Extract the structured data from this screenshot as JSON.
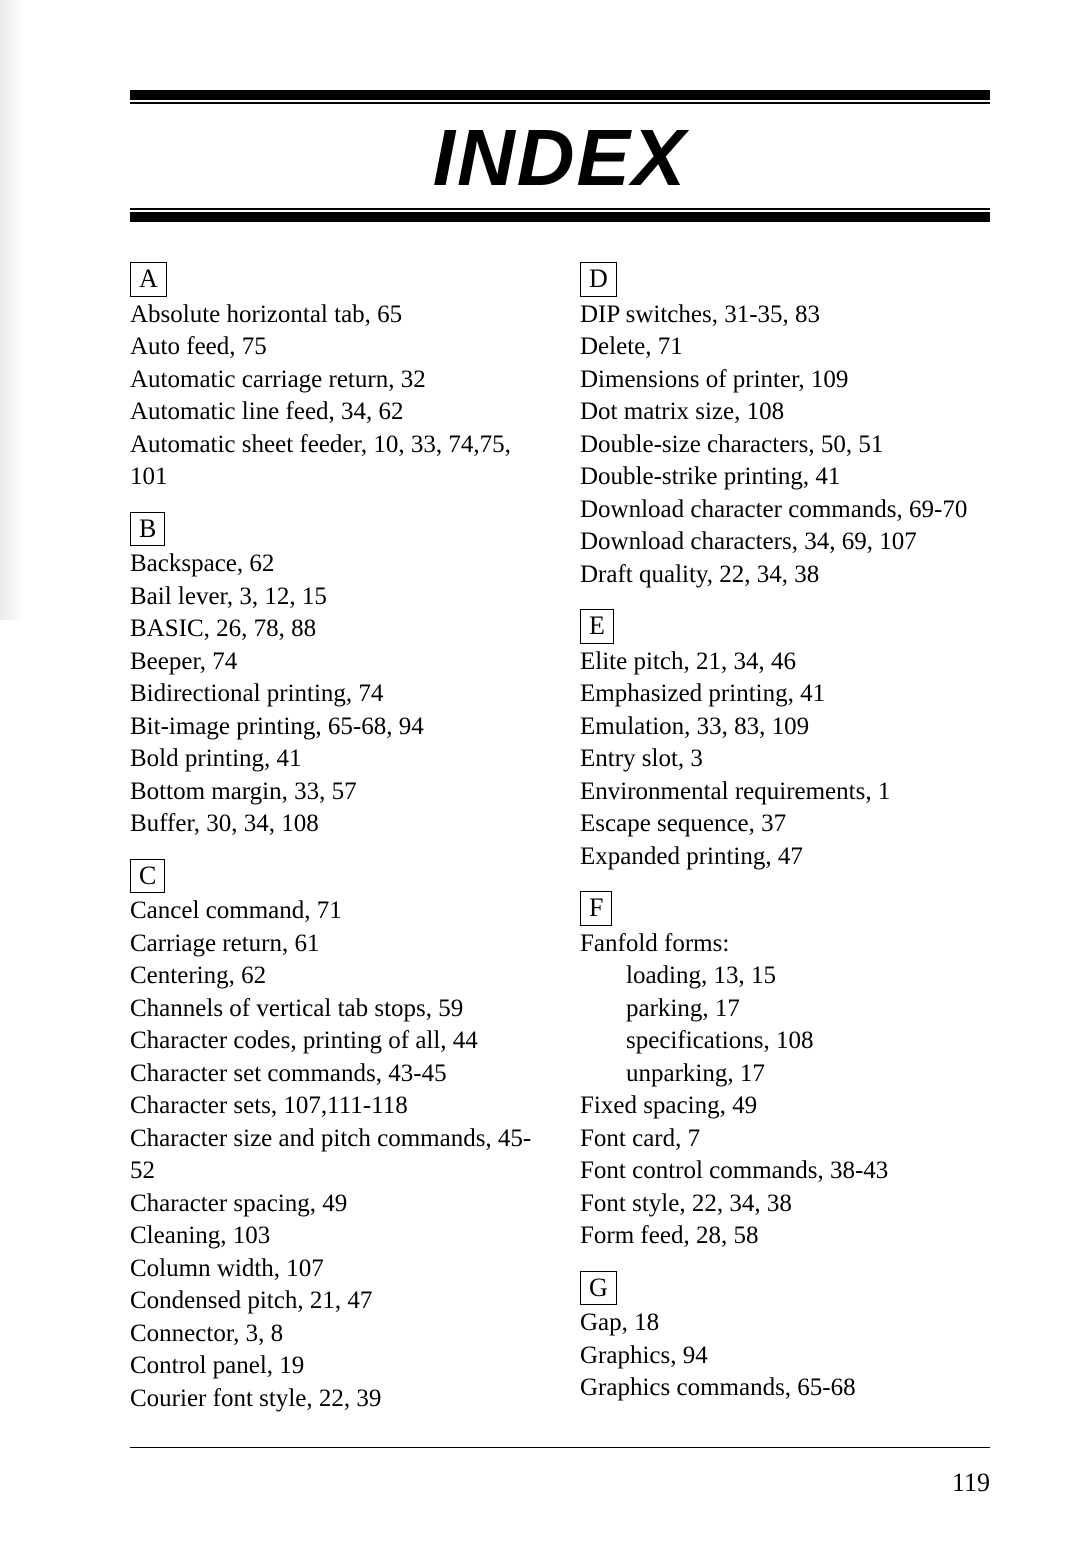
{
  "title": "INDEX",
  "page_number": "119",
  "left": {
    "A": {
      "letter": "A",
      "entries": [
        "Absolute horizontal tab, 65",
        "Auto feed, 75",
        "Automatic carriage return, 32",
        "Automatic line feed, 34, 62",
        "Automatic sheet feeder, 10, 33, 74,75, 101"
      ]
    },
    "B": {
      "letter": "B",
      "entries": [
        "Backspace, 62",
        "Bail lever, 3, 12, 15",
        "BASIC, 26, 78, 88",
        "Beeper, 74",
        "Bidirectional printing, 74",
        "Bit-image printing, 65-68, 94",
        "Bold printing, 41",
        "Bottom margin, 33, 57",
        "Buffer, 30, 34, 108"
      ]
    },
    "C": {
      "letter": "C",
      "entries": [
        "Cancel command, 71",
        "Carriage return, 61",
        "Centering, 62",
        "Channels of vertical tab stops, 59",
        "Character codes, printing of all, 44",
        "Character set commands, 43-45",
        "Character sets, 107,111-118",
        "Character size and pitch commands, 45-52",
        "Character spacing, 49",
        "Cleaning, 103",
        "Column width, 107",
        "Condensed pitch, 21, 47",
        "Connector, 3, 8",
        "Control panel, 19",
        "Courier font style, 22, 39"
      ]
    }
  },
  "right": {
    "D": {
      "letter": "D",
      "entries": [
        "DIP switches, 31-35, 83",
        "Delete, 71",
        "Dimensions of printer, 109",
        "Dot matrix size, 108",
        "Double-size characters, 50, 51",
        "Double-strike printing, 41",
        "Download character commands, 69-70",
        "Download characters, 34, 69, 107",
        "Draft quality, 22, 34, 38"
      ]
    },
    "E": {
      "letter": "E",
      "entries": [
        "Elite pitch, 21, 34, 46",
        "Emphasized printing, 41",
        "Emulation, 33, 83, 109",
        "Entry slot, 3",
        "Environmental requirements, 1",
        "Escape sequence, 37",
        "Expanded printing, 47"
      ]
    },
    "F": {
      "letter": "F",
      "header": "Fanfold forms:",
      "subs": [
        "loading, 13, 15",
        "parking, 17",
        "specifications, 108",
        "unparking, 17"
      ],
      "entries": [
        "Fixed spacing, 49",
        "Font card, 7",
        "Font control commands, 38-43",
        "Font style, 22, 34, 38",
        "Form feed, 28, 58"
      ]
    },
    "G": {
      "letter": "G",
      "entries": [
        "Gap, 18",
        "Graphics, 94",
        "Graphics commands, 65-68"
      ]
    }
  }
}
